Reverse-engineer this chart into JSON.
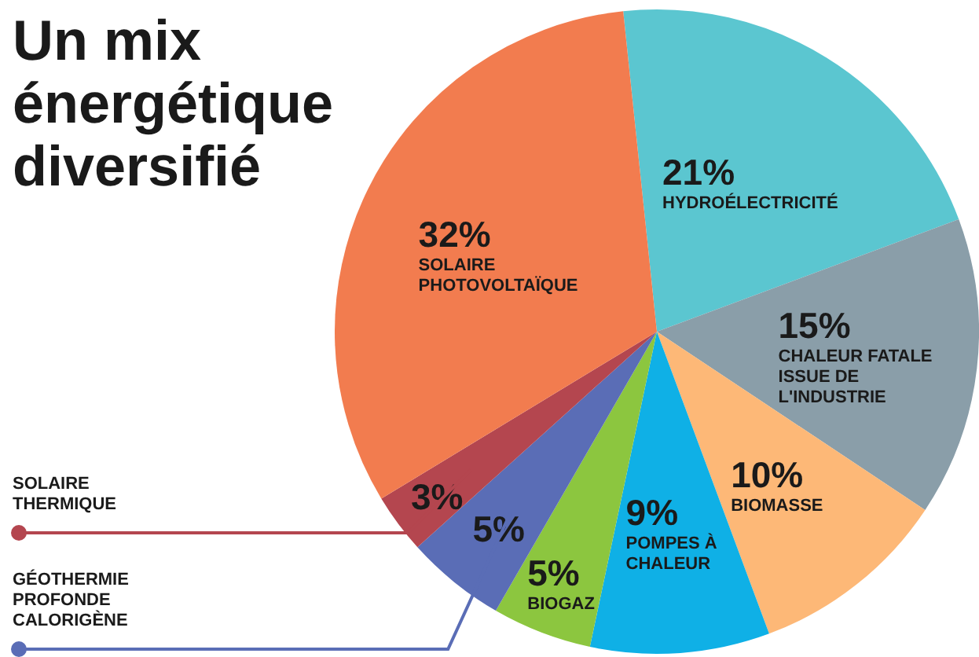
{
  "chart_data": {
    "type": "pie",
    "title": "Un mix énergétique diversifié",
    "categories": [
      "HYDROÉLECTRICITÉ",
      "CHALEUR FATALE ISSUE DE L'INDUSTRIE",
      "BIOMASSE",
      "POMPES À CHALEUR",
      "BIOGAZ",
      "GÉOTHERMIE PROFONDE CALORIGÈNE",
      "SOLAIRE THERMIQUE",
      "SOLAIRE PHOTOVOLTAÏQUE"
    ],
    "values": [
      21,
      15,
      10,
      9,
      5,
      5,
      3,
      32
    ],
    "colors": [
      "#5bc6d0",
      "#8a9ea9",
      "#fdb877",
      "#0fb0e6",
      "#8cc63f",
      "#5a6db6",
      "#b4464f",
      "#f27c4f"
    ],
    "value_labels": [
      "21%",
      "15%",
      "10%",
      "9%",
      "5%",
      "5%",
      "3%",
      "32%"
    ],
    "legend": false
  }
}
